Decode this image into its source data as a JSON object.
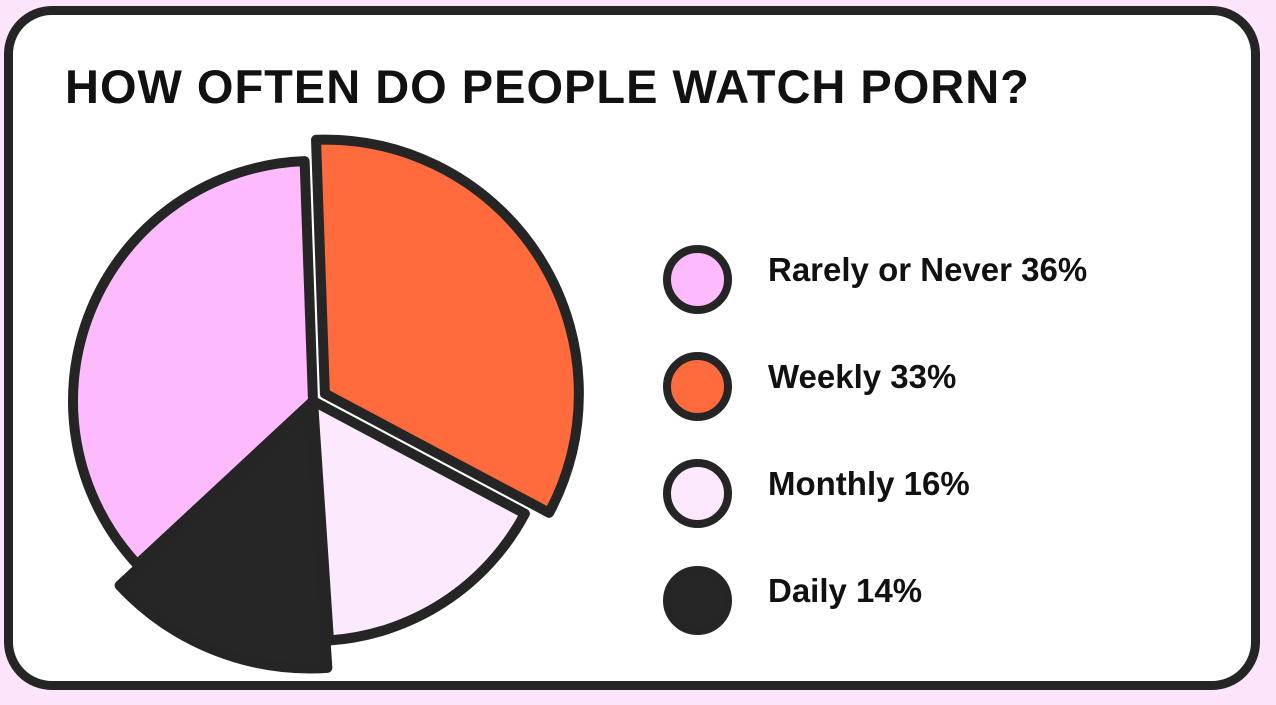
{
  "chart_data": {
    "type": "pie",
    "title": "HOW OFTEN DO PEOPLE WATCH PORN?",
    "slices": [
      {
        "label": "Rarely or Never 36%",
        "value": 36,
        "color": "#fdbafd"
      },
      {
        "label": "Weekly 33%",
        "value": 33,
        "color": "#ff6b3d"
      },
      {
        "label": "Monthly 16%",
        "value": 16,
        "color": "#fde9fd"
      },
      {
        "label": "Daily 14%",
        "value": 14,
        "color": "#262626"
      }
    ],
    "legend_position": "right",
    "outline_color": "#252525"
  },
  "theme": {
    "background": "#fce4fb",
    "card": "#ffffff"
  }
}
